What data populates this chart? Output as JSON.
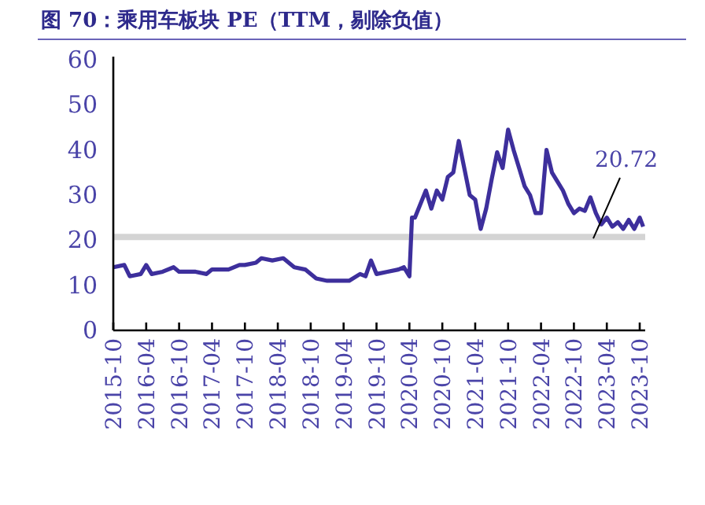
{
  "chart_data": {
    "type": "line",
    "title": "图 70：乘用车板块 PE（TTM，剔除负值）",
    "series": [
      {
        "color": "#3d2f9c",
        "x": [
          "2015-10",
          "2015-12",
          "2016-01",
          "2016-03",
          "2016-04",
          "2016-05",
          "2016-07",
          "2016-09",
          "2016-10",
          "2017-01",
          "2017-03",
          "2017-04",
          "2017-07",
          "2017-09",
          "2017-10",
          "2017-12",
          "2018-01",
          "2018-03",
          "2018-05",
          "2018-07",
          "2018-09",
          "2018-11",
          "2019-01",
          "2019-03",
          "2019-05",
          "2019-07",
          "2019-08",
          "2019-09",
          "2019-10",
          "2019-12",
          "2020-02",
          "2020-03",
          "2020-04",
          "2020-04-15",
          "2020-05",
          "2020-07",
          "2020-08",
          "2020-09",
          "2020-10",
          "2020-11",
          "2020-12",
          "2021-01",
          "2021-02",
          "2021-03",
          "2021-04",
          "2021-05",
          "2021-06",
          "2021-07",
          "2021-08",
          "2021-09",
          "2021-10",
          "2021-11",
          "2021-12",
          "2022-01",
          "2022-02",
          "2022-03",
          "2022-04",
          "2022-05",
          "2022-06",
          "2022-07",
          "2022-08",
          "2022-09",
          "2022-10",
          "2022-11",
          "2022-12",
          "2023-01",
          "2023-02",
          "2023-03",
          "2023-04",
          "2023-05",
          "2023-06",
          "2023-07",
          "2023-08",
          "2023-09",
          "2023-10",
          "2023-10-20"
        ],
        "values": [
          14,
          14.5,
          12,
          12.5,
          14.5,
          12.5,
          13,
          14,
          13,
          13,
          12.5,
          13.5,
          13.5,
          14.5,
          14.5,
          15,
          16,
          15.5,
          16,
          14,
          13.5,
          11.5,
          11,
          11,
          11,
          12.5,
          12,
          15.5,
          12.5,
          13,
          13.5,
          14,
          12,
          25,
          25,
          31,
          27,
          31,
          29,
          34,
          35,
          42,
          36,
          30,
          29,
          22.5,
          27,
          33.5,
          39.5,
          36,
          44.5,
          40,
          36,
          32,
          30,
          26,
          26,
          40,
          35,
          33,
          31,
          28,
          26,
          27,
          26.5,
          29.5,
          26,
          23.5,
          25,
          23,
          24,
          22.5,
          24.5,
          22.5,
          25,
          23
        ]
      }
    ],
    "xlim": [
      "2015-10",
      "2023-11"
    ],
    "xticks": [
      "2015-10",
      "2016-04",
      "2016-10",
      "2017-04",
      "2017-10",
      "2018-04",
      "2018-10",
      "2019-04",
      "2019-10",
      "2020-04",
      "2020-10",
      "2021-04",
      "2021-10",
      "2022-04",
      "2022-10",
      "2023-04",
      "2023-10"
    ],
    "ylim": [
      0,
      60
    ],
    "yticks": [
      0,
      10,
      20,
      30,
      40,
      50,
      60
    ],
    "ref_lines": [
      {
        "axis": "y",
        "value": 20.72,
        "label": "20.72",
        "color": "#d4d4d4"
      }
    ],
    "grid": false,
    "line_style": "solid",
    "marker": "none"
  }
}
